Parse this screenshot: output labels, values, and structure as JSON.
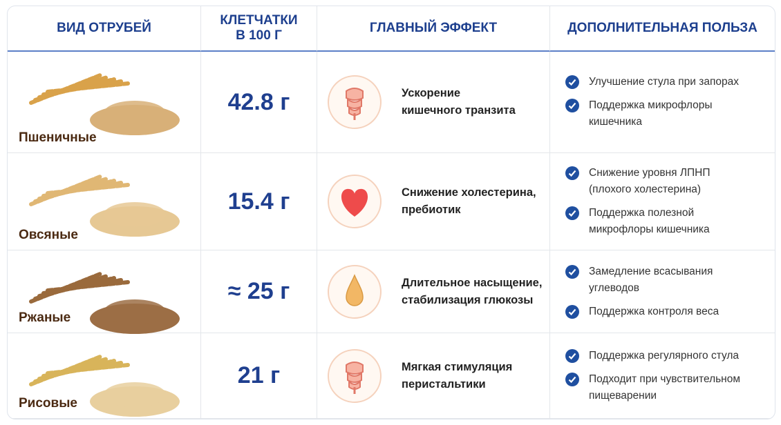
{
  "table": {
    "headers": [
      "ВИД ОТРУБЕЙ",
      "КЛЕТЧАТКИ\nВ 100 Г",
      "ГЛАВНЫЙ ЭФФЕКТ",
      "ДОПОЛНИТЕЛЬНАЯ ПОЛЬЗА"
    ],
    "rows": [
      {
        "name": "Пшеничные",
        "fiber": "42.8 г",
        "effect": "Ускорение\nкишечного транзита",
        "benefits": [
          "Улучшение стула при запорах",
          "Поддержка микрофлоры\nкишечника"
        ]
      },
      {
        "name": "Овсяные",
        "fiber": "15.4 г",
        "effect": "Снижение холестерина,\nпребиотик",
        "benefits": [
          "Снижение уровня ЛПНП\n(плохого холестерина)",
          "Поддержка полезной\nмикрофлоры кишечника"
        ]
      },
      {
        "name": "Ржаные",
        "fiber": "≈ 25 г",
        "effect": "Длительное насыщение,\nстабилизация глюкозы",
        "benefits": [
          "Замедление всасывания\nуглеводов",
          "Поддержка контроля веса"
        ]
      },
      {
        "name": "Рисовые",
        "fiber": "21 г",
        "effect": "Мягкая стимуляция\nперистальтики",
        "benefits": [
          "Поддержка регулярного стула",
          "Подходит при чувствительном\nпищеварении"
        ]
      }
    ]
  }
}
